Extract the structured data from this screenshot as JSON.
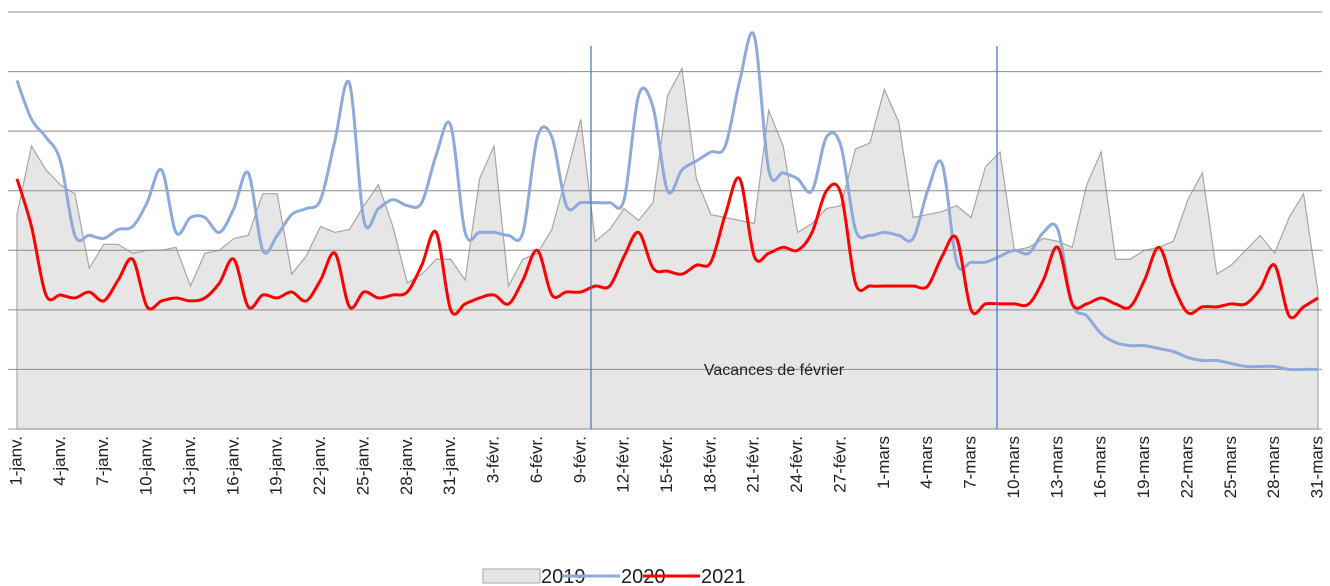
{
  "chart_data": {
    "type": "line",
    "annotation": "Vacances de février",
    "categories": [
      "1-janv.",
      null,
      null,
      "4-janv.",
      null,
      null,
      "7-janv.",
      null,
      null,
      "10-janv.",
      null,
      null,
      "13-janv.",
      null,
      null,
      "16-janv.",
      null,
      null,
      "19-janv.",
      null,
      null,
      "22-janv.",
      null,
      null,
      "25-janv.",
      null,
      null,
      "28-janv.",
      null,
      null,
      "31-janv.",
      null,
      null,
      "3-févr.",
      null,
      null,
      "6-févr.",
      null,
      null,
      "9-févr.",
      null,
      null,
      "12-févr.",
      null,
      null,
      "15-févr.",
      null,
      null,
      "18-févr.",
      null,
      null,
      "21-févr.",
      null,
      null,
      "24-févr.",
      null,
      null,
      "27-févr.",
      null,
      null,
      "1-mars",
      null,
      null,
      "4-mars",
      null,
      null,
      "7-mars",
      null,
      null,
      "10-mars",
      null,
      null,
      "13-mars",
      null,
      null,
      "16-mars",
      null,
      null,
      "19-mars",
      null,
      null,
      "22-mars",
      null,
      null,
      "25-mars",
      null,
      null,
      "28-mars",
      null,
      null,
      "31-mars"
    ],
    "series": [
      {
        "name": "2019",
        "kind": "area",
        "color": "#e6e6e6",
        "values": [
          3.6,
          4.75,
          4.35,
          4.1,
          3.95,
          2.7,
          3.1,
          3.1,
          2.95,
          3.0,
          3.0,
          3.05,
          2.4,
          2.95,
          3.0,
          3.2,
          3.25,
          3.95,
          3.95,
          2.6,
          2.9,
          3.4,
          3.3,
          3.35,
          3.75,
          4.1,
          3.4,
          2.45,
          2.6,
          2.85,
          2.85,
          2.5,
          4.2,
          4.75,
          2.4,
          2.85,
          2.95,
          3.35,
          4.25,
          5.2,
          3.15,
          3.35,
          3.7,
          3.5,
          3.8,
          5.6,
          6.05,
          4.2,
          3.6,
          3.55,
          3.5,
          3.45,
          5.35,
          4.75,
          3.3,
          3.45,
          3.7,
          3.75,
          4.7,
          4.8,
          5.7,
          5.15,
          3.55,
          3.6,
          3.65,
          3.75,
          3.55,
          4.4,
          4.65,
          3.0,
          3.05,
          3.2,
          3.15,
          3.05,
          4.1,
          4.65,
          2.85,
          2.85,
          3.0,
          3.05,
          3.15,
          3.85,
          4.3,
          2.6,
          2.75,
          3.0,
          3.25,
          2.95,
          3.55,
          3.95,
          2.3
        ]
      },
      {
        "name": "2020",
        "kind": "line",
        "color": "#8eaadb",
        "values": [
          5.85,
          5.2,
          4.9,
          4.5,
          3.25,
          3.25,
          3.2,
          3.35,
          3.4,
          3.8,
          4.35,
          3.3,
          3.55,
          3.55,
          3.3,
          3.7,
          4.3,
          3.0,
          3.25,
          3.6,
          3.7,
          3.85,
          4.85,
          5.8,
          3.5,
          3.7,
          3.85,
          3.75,
          3.8,
          4.6,
          5.1,
          3.3,
          3.3,
          3.3,
          3.25,
          3.3,
          4.9,
          4.9,
          3.75,
          3.8,
          3.8,
          3.8,
          3.85,
          5.6,
          5.4,
          4.0,
          4.35,
          4.5,
          4.65,
          4.75,
          5.85,
          6.6,
          4.35,
          4.3,
          4.2,
          4.0,
          4.9,
          4.75,
          3.35,
          3.25,
          3.3,
          3.25,
          3.2,
          4.0,
          4.45,
          2.8,
          2.8,
          2.8,
          2.9,
          3.0,
          2.95,
          3.3,
          3.35,
          2.1,
          1.9,
          1.6,
          1.45,
          1.4,
          1.4,
          1.35,
          1.3,
          1.2,
          1.15,
          1.15,
          1.1,
          1.05,
          1.05,
          1.05,
          1.0,
          1.0,
          1.0
        ]
      },
      {
        "name": "2021",
        "kind": "line",
        "color": "#ff0000",
        "values": [
          4.2,
          3.4,
          2.25,
          2.25,
          2.2,
          2.3,
          2.15,
          2.5,
          2.85,
          2.05,
          2.15,
          2.2,
          2.15,
          2.2,
          2.45,
          2.85,
          2.05,
          2.25,
          2.2,
          2.3,
          2.15,
          2.5,
          2.95,
          2.05,
          2.3,
          2.2,
          2.25,
          2.3,
          2.75,
          3.3,
          2.0,
          2.1,
          2.2,
          2.25,
          2.1,
          2.5,
          3.0,
          2.25,
          2.3,
          2.3,
          2.4,
          2.4,
          2.9,
          3.3,
          2.7,
          2.65,
          2.6,
          2.75,
          2.8,
          3.6,
          4.2,
          2.9,
          2.95,
          3.05,
          3.0,
          3.3,
          4.0,
          3.95,
          2.45,
          2.4,
          2.4,
          2.4,
          2.4,
          2.4,
          2.9,
          3.2,
          2.0,
          2.1,
          2.1,
          2.1,
          2.1,
          2.5,
          3.05,
          2.1,
          2.1,
          2.2,
          2.1,
          2.05,
          2.5,
          3.05,
          2.4,
          1.95,
          2.05,
          2.05,
          2.1,
          2.1,
          2.35,
          2.75,
          1.9,
          2.05,
          2.2
        ]
      }
    ],
    "ylim": [
      0,
      7
    ],
    "yticks": [
      0,
      1,
      2,
      3,
      4,
      5,
      6,
      7
    ],
    "grid": true,
    "legend": "bottom"
  }
}
